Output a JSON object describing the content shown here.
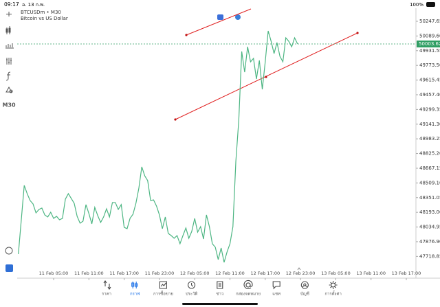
{
  "status_bar": {
    "time": "09:17",
    "date": "อ. 13 ก.พ.",
    "battery": "100%"
  },
  "toolbar": {
    "timeframe": "M30"
  },
  "chart_data": {
    "type": "line",
    "title": "BTCUSDm • M30",
    "subtitle": "Bitcoin vs US Dollar",
    "color": "#4cb582",
    "categories": [
      null,
      null,
      null,
      null,
      null,
      null,
      null,
      null,
      null,
      null,
      null,
      null,
      "11 Feb 05:00",
      null,
      null,
      null,
      null,
      null,
      null,
      null,
      null,
      null,
      null,
      null,
      "11 Feb 11:00",
      null,
      null,
      null,
      null,
      null,
      null,
      null,
      null,
      null,
      null,
      null,
      "11 Feb 17:00",
      null,
      null,
      null,
      null,
      null,
      null,
      null,
      null,
      null,
      null,
      null,
      "11 Feb 23:00",
      null,
      null,
      null,
      null,
      null,
      null,
      null,
      null,
      null,
      null,
      null,
      "12 Feb 05:00",
      null,
      null,
      null,
      null,
      null,
      null,
      null,
      null,
      null,
      null,
      null,
      "12 Feb 11:00",
      null,
      null,
      null,
      null,
      null,
      null,
      null,
      null,
      null,
      null,
      null,
      "12 Feb 17:00",
      null,
      null,
      null,
      null,
      null,
      null,
      null,
      null,
      null,
      null,
      null,
      "12 Feb 23:00",
      null,
      null,
      null,
      null,
      null,
      null,
      null,
      null,
      null,
      null,
      null,
      "13 Feb 05:00",
      null,
      null,
      null,
      null,
      null,
      null,
      null,
      null,
      null,
      null,
      null,
      "13 Feb 11:00",
      null,
      null,
      null,
      null,
      null,
      null,
      null,
      null,
      null,
      null,
      null,
      "13 Feb 17:00"
    ],
    "values": [
      47744,
      48113,
      48483,
      48394,
      48320,
      48283,
      48187,
      48224,
      48239,
      48165,
      48143,
      48194,
      48128,
      48150,
      48113,
      48128,
      48335,
      48394,
      48342,
      48290,
      48150,
      48076,
      48098,
      48276,
      48180,
      48069,
      48246,
      48158,
      48084,
      48143,
      48231,
      48143,
      48298,
      48298,
      48224,
      48276,
      48032,
      48017,
      48128,
      48172,
      48290,
      48453,
      48682,
      48586,
      48534,
      48320,
      48327,
      48261,
      48165,
      48017,
      48143,
      47966,
      47943,
      47914,
      47943,
      47855,
      47943,
      48025,
      47914,
      47988,
      48128,
      47980,
      48039,
      47906,
      48165,
      48039,
      47855,
      47818,
      47685,
      47810,
      47655,
      47766,
      47855,
      48039,
      48741,
      49184,
      49923,
      49701,
      49974,
      49812,
      49849,
      49627,
      49827,
      49516,
      49812,
      50144,
      50033,
      49901,
      50019,
      49871,
      49812,
      50070,
      50033,
      49974,
      50070,
      50004,
      null,
      null,
      null,
      null,
      null,
      null,
      null,
      null,
      null,
      null,
      null,
      null,
      null,
      null,
      null,
      null,
      null,
      null,
      null,
      null,
      null,
      null,
      null,
      null,
      null,
      null,
      null,
      null,
      null,
      null,
      null,
      null,
      null,
      null,
      null,
      null,
      null
    ],
    "current_price": 50003.62,
    "current_price_color": "#2f9e63",
    "ylim": [
      47485,
      50388
    ],
    "yticks": [
      47718.85,
      {
        "value": 47876.9,
        "label": "47876.90"
      },
      48034.95,
      {
        "value": 48193,
        "label": "48193.00"
      },
      48351.05,
      {
        "value": 48509.1,
        "label": "48509.10"
      },
      48667.15,
      {
        "value": 48825.2,
        "label": "48825.20"
      },
      48983.25,
      {
        "value": 49141.3,
        "label": "49141.30"
      },
      49299.35,
      {
        "value": 49457.4,
        "label": "49457.40"
      },
      49615.45,
      {
        "value": 49773.5,
        "label": "49773.50"
      },
      49931.55,
      {
        "value": 50089.6,
        "label": "50089.60"
      },
      50247.65
    ]
  },
  "tab_bar": {
    "tabs": [
      "ราคา",
      "กราฟ",
      "การซื้อขาย",
      "ประวัติ",
      "ข่าว",
      "กล่องจดหมาย",
      "แชท",
      "บัญชี",
      "การตั้งค่า"
    ],
    "active": 1
  }
}
